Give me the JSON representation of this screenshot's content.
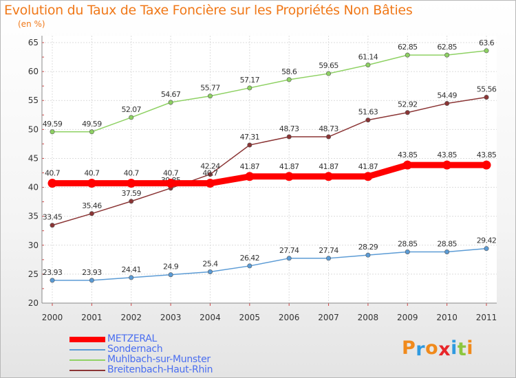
{
  "title": "Evolution du Taux de Taxe Foncière sur les Propriétés Non Bâties",
  "subtitle": "(en %)",
  "brand": {
    "letters": [
      "P",
      "r",
      "o",
      "x",
      "i",
      "t",
      "i"
    ],
    "colors": [
      "#f08a1c",
      "#2f9ae0",
      "#f08a1c",
      "#e8262a",
      "#2f9ae0",
      "#8cc63e",
      "#f08a1c"
    ]
  },
  "chart_data": {
    "type": "line",
    "x": [
      "2000",
      "2001",
      "2002",
      "2003",
      "2004",
      "2005",
      "2006",
      "2007",
      "2008",
      "2009",
      "2010",
      "2011"
    ],
    "ylim": [
      20,
      65
    ],
    "yticks": [
      "20",
      "25",
      "30",
      "35",
      "40",
      "45",
      "50",
      "55",
      "60",
      "65"
    ],
    "grid": true,
    "legend_position": "bottom-left",
    "series": [
      {
        "name": "METZERAL",
        "color": "#ff0000",
        "values": [
          40.7,
          40.7,
          40.7,
          40.7,
          40.7,
          41.87,
          41.87,
          41.87,
          41.87,
          43.85,
          43.85,
          43.85
        ],
        "labels": [
          "40.7",
          "40.7",
          "40.7",
          "40.7",
          "40.7",
          "41.87",
          "41.87",
          "41.87",
          "41.87",
          "43.85",
          "43.85",
          "43.85"
        ]
      },
      {
        "name": "Sondernach",
        "color": "#5b9bd5",
        "values": [
          23.93,
          23.93,
          24.41,
          24.9,
          25.4,
          26.42,
          27.74,
          27.74,
          28.29,
          28.85,
          28.85,
          29.42
        ],
        "labels": [
          "23.93",
          "23.93",
          "24.41",
          "24.9",
          "25.4",
          "26.42",
          "27.74",
          "27.74",
          "28.29",
          "28.85",
          "28.85",
          "29.42"
        ]
      },
      {
        "name": "Muhlbach-sur-Munster",
        "color": "#8ed163",
        "values": [
          49.59,
          49.59,
          52.07,
          54.67,
          55.77,
          57.17,
          58.6,
          59.65,
          61.14,
          62.85,
          62.85,
          63.6
        ],
        "labels": [
          "49.59",
          "49.59",
          "52.07",
          "54.67",
          "55.77",
          "57.17",
          "58.6",
          "59.65",
          "61.14",
          "62.85",
          "62.85",
          "63.6"
        ]
      },
      {
        "name": "Breitenbach-Haut-Rhin",
        "color": "#8b3535",
        "values": [
          33.45,
          35.46,
          37.59,
          39.85,
          42.24,
          47.31,
          48.73,
          48.73,
          51.63,
          52.92,
          54.49,
          55.56
        ],
        "labels": [
          "33.45",
          "35.46",
          "37.59",
          "39.85",
          "42.24",
          "47.31",
          "48.73",
          "48.73",
          "51.63",
          "52.92",
          "54.49",
          "55.56"
        ]
      }
    ]
  }
}
